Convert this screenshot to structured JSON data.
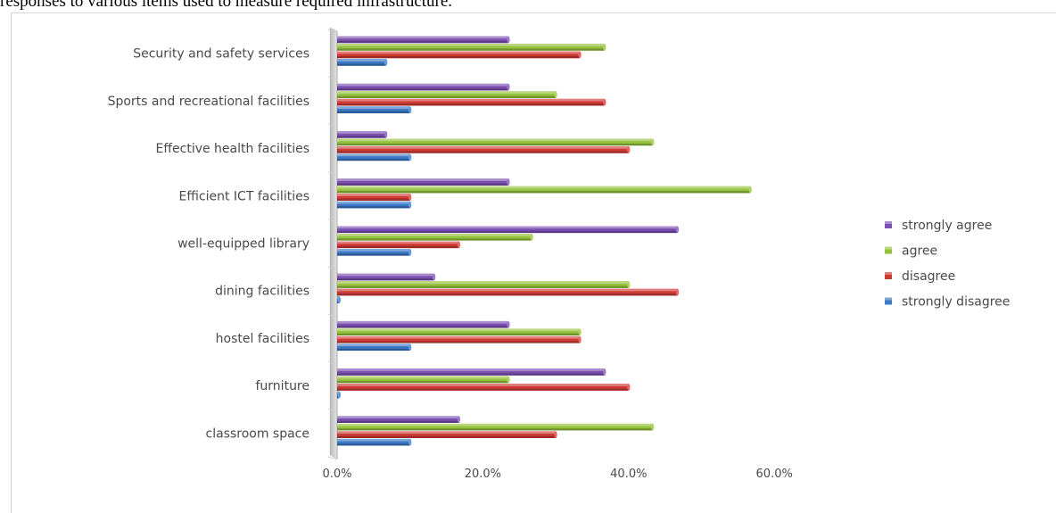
{
  "caption": "responses to various items used to measure required infrastructure.",
  "chart_data": {
    "type": "bar",
    "orientation": "horizontal",
    "categories": [
      "Security and safety services",
      "Sports and recreational facilities",
      "Effective health facilities",
      "Efficient ICT facilities",
      "well-equipped library",
      "dining facilities",
      "hostel facilities",
      "furniture",
      "classroom space"
    ],
    "series": [
      {
        "name": "strongly agree",
        "color": "#7b4fb0",
        "values": [
          23.5,
          23.5,
          6.7,
          23.5,
          46.7,
          13.3,
          23.5,
          36.7,
          16.7
        ]
      },
      {
        "name": "agree",
        "color": "#95c23c",
        "values": [
          36.7,
          30.0,
          43.3,
          56.7,
          26.7,
          40.0,
          33.3,
          23.5,
          43.3
        ]
      },
      {
        "name": "disagree",
        "color": "#d03a35",
        "values": [
          33.3,
          36.7,
          40.0,
          10.0,
          16.7,
          46.7,
          33.3,
          40.0,
          30.0
        ]
      },
      {
        "name": "strongly disagree",
        "color": "#3b78c6",
        "values": [
          6.7,
          10.0,
          10.0,
          10.0,
          10.0,
          0.3,
          10.0,
          0.3,
          10.0
        ]
      }
    ],
    "xticks": [
      "0.0%",
      "20.0%",
      "40.0%",
      "60.0%"
    ],
    "xlim": [
      0,
      60
    ],
    "legend_position": "right",
    "grid": false
  }
}
